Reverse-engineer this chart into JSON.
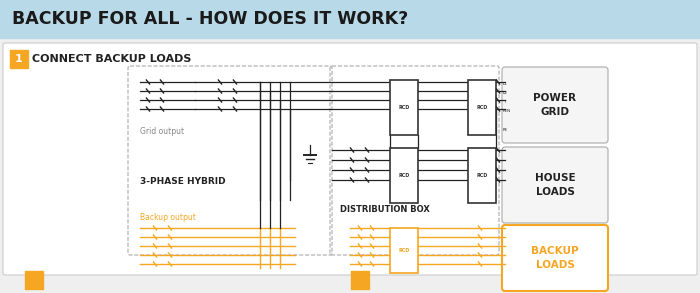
{
  "title": "BACKUP FOR ALL - HOW DOES IT WORK?",
  "title_bg": "#b8d9e8",
  "title_color": "#1a1a1a",
  "step_label": "1",
  "step_color": "#f5a623",
  "step_text": "CONNECT BACKUP LOADS",
  "main_bg": "#efefef",
  "diagram_bg": "#ffffff",
  "orange": "#f5a623",
  "black": "#222222",
  "gray": "#888888",
  "light_gray": "#cccccc",
  "labels": {
    "grid_output": "Grid output",
    "hybrid": "3-PHASE HYBRID",
    "dist_box": "DISTRIBUTION BOX",
    "backup_output": "Backup output",
    "power_grid": "POWER\nGRID",
    "house_loads": "HOUSE\nLOADS",
    "backup_loads": "BACKUP\nLOADS"
  },
  "footer_squares": [
    0.035,
    0.502
  ]
}
